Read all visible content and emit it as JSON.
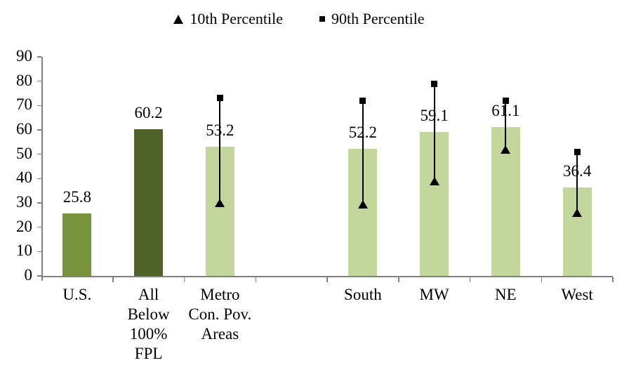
{
  "legend": {
    "items": [
      {
        "marker": "triangle-marker",
        "label": "10th Percentile"
      },
      {
        "marker": "square-marker",
        "label": "90th Percentile"
      }
    ]
  },
  "chart_data": {
    "type": "bar",
    "title": "",
    "xlabel": "",
    "ylabel": "",
    "ylim": [
      0,
      90
    ],
    "ytick_step": 10,
    "grid": false,
    "legend_position": "top-center",
    "axis_color": "#808080",
    "error_bar_color": "#000000",
    "categories": [
      "U.S.",
      "All Below 100% FPL",
      "Metro Con. Pov. Areas",
      "",
      "South",
      "MW",
      "NE",
      "West"
    ],
    "values": [
      25.8,
      60.2,
      53.2,
      null,
      52.2,
      59.1,
      61.1,
      36.4
    ],
    "percentile_10": [
      null,
      null,
      30,
      null,
      29.5,
      39,
      52,
      26
    ],
    "percentile_90": [
      null,
      null,
      73,
      null,
      72,
      79,
      72,
      51
    ],
    "bars": [
      {
        "label_lines": [
          "U.S."
        ],
        "value": 25.8,
        "value_label": "25.8",
        "color": "#77933C",
        "p10": null,
        "p90": null
      },
      {
        "label_lines": [
          "All",
          "Below",
          "100%",
          "FPL"
        ],
        "value": 60.2,
        "value_label": "60.2",
        "color": "#4F6228",
        "p10": null,
        "p90": null
      },
      {
        "label_lines": [
          "Metro",
          "Con. Pov.",
          "Areas"
        ],
        "value": 53.2,
        "value_label": "53.2",
        "color": "#C3D69B",
        "p10": 30,
        "p90": 73
      },
      {
        "label_lines": [],
        "value": null,
        "value_label": "",
        "color": null,
        "p10": null,
        "p90": null
      },
      {
        "label_lines": [
          "South"
        ],
        "value": 52.2,
        "value_label": "52.2",
        "color": "#C3D69B",
        "p10": 29.5,
        "p90": 72
      },
      {
        "label_lines": [
          "MW"
        ],
        "value": 59.1,
        "value_label": "59.1",
        "color": "#C3D69B",
        "p10": 39,
        "p90": 79
      },
      {
        "label_lines": [
          "NE"
        ],
        "value": 61.1,
        "value_label": "61.1",
        "color": "#C3D69B",
        "p10": 52,
        "p90": 72
      },
      {
        "label_lines": [
          "West"
        ],
        "value": 36.4,
        "value_label": "36.4",
        "color": "#C3D69B",
        "p10": 26,
        "p90": 51
      }
    ]
  }
}
